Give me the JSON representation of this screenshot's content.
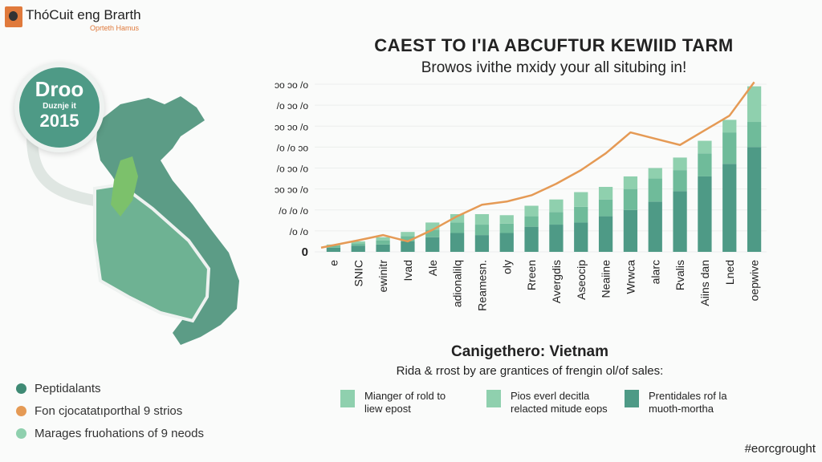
{
  "header": {
    "brand": "ThóCuit eng Brarth",
    "brand_sub": "Oprteth Hamus"
  },
  "badge": {
    "line1": "Droo",
    "line2": "Duznje it",
    "line3": "2015"
  },
  "colors": {
    "dark": "#4e9a86",
    "mid": "#6fbb9a",
    "light": "#8fd0ae",
    "line": "#e59a55",
    "map": "#5c9c86",
    "highlight": "#7cc16b"
  },
  "legend_left": [
    {
      "label": "Peptidalants",
      "color": "#3f8a74"
    },
    {
      "label": "Fon cjocatatıporthal 9 strios",
      "color": "#e59a55"
    },
    {
      "label": "Marages fruohations of 9 neods",
      "color": "#8fd0ae"
    }
  ],
  "section": {
    "title": "Canigethero: Vietnam",
    "subtitle": "Rida & rrost by are grantices of frengin ol/of sales:"
  },
  "legend_bottom": [
    {
      "label": "Mianger of rold to liew epost",
      "color": "#8fd0ae"
    },
    {
      "label": "Pios everl decitla relacted mitude eops",
      "color": "#8fd0ae"
    },
    {
      "label": "Prentidales rof la muoth-mortha",
      "color": "#4e9a86"
    }
  ],
  "footer": {
    "hashtag": "#eorcgrought"
  },
  "chart_data": {
    "type": "bar",
    "title": "CAEST TO I'IA ABCUFTUR KEWIID TARM",
    "subtitle": "Browos ivithe mxidy your all situbing in!",
    "stacked": true,
    "ylim": [
      0,
      8
    ],
    "ytick_labels": [
      "0",
      "/o /o",
      "/o /o /o",
      "ɔo ɔo /o",
      "/o ɔo /o",
      "/o /o ɔo",
      "ɔo ɔo /o",
      "/o ɔo /o",
      "ɔo ɔo /o"
    ],
    "grid": true,
    "categories": [
      "e",
      "SNIC",
      "ewinitr",
      "Ivad",
      "Ale",
      "adionalilq",
      "Reamesn.",
      "oly",
      "Rreen",
      "Avergdis",
      "Aseocip",
      "Neaiine",
      "Wrwca",
      "alarc",
      "Rvalis",
      "Aiins dan",
      "Lned",
      "oepwive"
    ],
    "series": [
      {
        "values": [
          0.2,
          0.3,
          0.35,
          0.5,
          0.7,
          0.9,
          0.8,
          0.9,
          1.2,
          1.3,
          1.4,
          1.7,
          2.0,
          2.4,
          2.9,
          3.6,
          4.2,
          5.0
        ]
      },
      {
        "values": [
          0.1,
          0.1,
          0.2,
          0.25,
          0.35,
          0.5,
          0.5,
          0.45,
          0.5,
          0.6,
          0.75,
          0.8,
          1.0,
          1.1,
          1.0,
          1.1,
          1.5,
          1.2
        ]
      },
      {
        "values": [
          0.05,
          0.1,
          0.15,
          0.2,
          0.35,
          0.4,
          0.5,
          0.4,
          0.5,
          0.6,
          0.7,
          0.6,
          0.6,
          0.5,
          0.6,
          0.6,
          0.6,
          1.7
        ]
      }
    ],
    "line": {
      "values": [
        0.2,
        0.55,
        0.8,
        0.5,
        1.05,
        1.7,
        2.25,
        2.4,
        2.7,
        3.25,
        3.9,
        4.7,
        5.7,
        5.4,
        5.1,
        5.8,
        6.5,
        8.1
      ]
    }
  }
}
